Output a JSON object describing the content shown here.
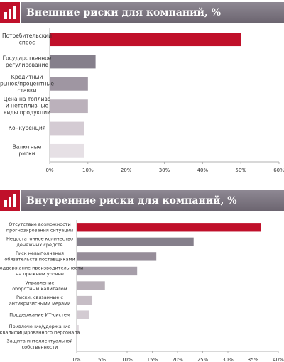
{
  "chart_data": [
    {
      "type": "bar",
      "orientation": "horizontal",
      "title": "Внешние риски для компаний, %",
      "categories": [
        "Потребительский\nспрос",
        "Государственное\nрегулирование",
        "Кредитный\nрынок/процентные\nставки",
        "Цена на топливо\nи нетопливные\nвиды продукции",
        "Конкуренция",
        "Валютные\nриски"
      ],
      "values": [
        50,
        12,
        10,
        10,
        9,
        9
      ],
      "colors": [
        "#c0102a",
        "#857f8b",
        "#9f96a2",
        "#bbb1bb",
        "#d4cbd3",
        "#e6e0e5"
      ],
      "xlim": [
        0,
        60
      ],
      "xticks": [
        {
          "value": 0,
          "label": "0%"
        },
        {
          "value": 10,
          "label": "10%"
        },
        {
          "value": 20,
          "label": "20%"
        },
        {
          "value": 30,
          "label": "30%"
        },
        {
          "value": 40,
          "label": "40%"
        },
        {
          "value": 50,
          "label": "50%"
        },
        {
          "value": 60,
          "label": "60%"
        }
      ]
    },
    {
      "type": "bar",
      "orientation": "horizontal",
      "title": "Внутренние  риски для компаний, %",
      "categories": [
        "Отсутствие возможности\nпрогнозирования ситуации",
        "Недостаточное количество\nденежных средств",
        "Риск невыполнения\nобязательств поставщиками",
        "Поддержание производительности\nна прежнем уровне",
        "Управление\nоборотным капиталом",
        "Риски, связанные с\nантикризисными мерами",
        "Поддержание ИТ-систем",
        "Привлечение/удержание\nквалифицированного персонала",
        "Защита интеллектуальной\nсобственности"
      ],
      "values": [
        36.5,
        23.2,
        15.8,
        12,
        5.6,
        3.1,
        2.5,
        0.4,
        0
      ],
      "colors": [
        "#c0102a",
        "#857f8b",
        "#968d99",
        "#a69ea9",
        "#b7aeb7",
        "#c6bdc5",
        "#d3cbd2",
        "#e0d9df",
        "#ebe6ea"
      ],
      "xlim": [
        0,
        40
      ],
      "xticks": [
        {
          "value": 0,
          "label": "0%"
        },
        {
          "value": 5,
          "label": "5%"
        },
        {
          "value": 10,
          "label": "10%"
        },
        {
          "value": 15,
          "label": "15%"
        },
        {
          "value": 20,
          "label": "20%"
        },
        {
          "value": 25,
          "label": "25%"
        },
        {
          "value": 30,
          "label": "30%"
        },
        {
          "value": 35,
          "label": "35%"
        },
        {
          "value": 40,
          "label": "40%"
        }
      ]
    }
  ]
}
